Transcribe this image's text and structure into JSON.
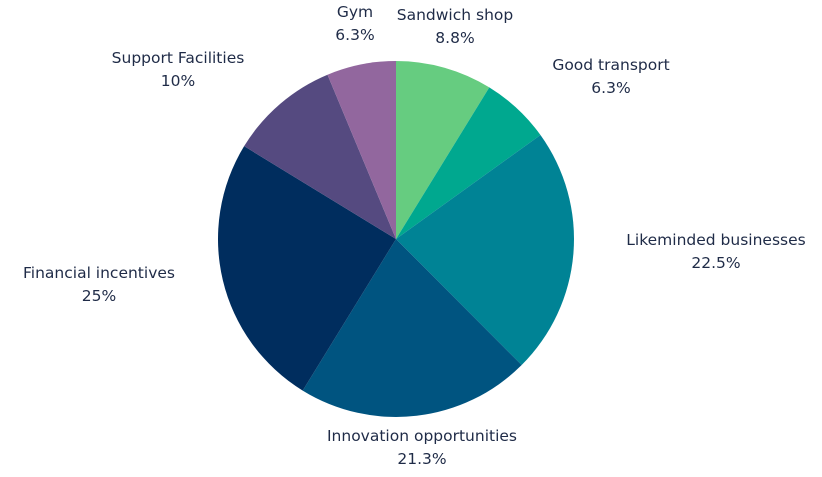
{
  "chart_data": {
    "type": "pie",
    "title": "",
    "slices": [
      {
        "name": "Sandwich shop",
        "value": 8.8,
        "percent_label": "8.8%",
        "color": "#66cc80"
      },
      {
        "name": "Good transport",
        "value": 6.3,
        "percent_label": "6.3%",
        "color": "#00a88f"
      },
      {
        "name": "Likeminded businesses",
        "value": 22.5,
        "percent_label": "22.5%",
        "color": "#008395"
      },
      {
        "name": "Innovation opportunities",
        "value": 21.3,
        "percent_label": "21.3%",
        "color": "#005480"
      },
      {
        "name": "Financial incentives",
        "value": 25,
        "percent_label": "25%",
        "color": "#002d5e"
      },
      {
        "name": "Support Facilities",
        "value": 10,
        "percent_label": "10%",
        "color": "#554a80"
      },
      {
        "name": "Gym",
        "value": 6.3,
        "percent_label": "6.3%",
        "color": "#92679e"
      }
    ],
    "start_position": "top",
    "direction": "clockwise",
    "legend": "none"
  }
}
